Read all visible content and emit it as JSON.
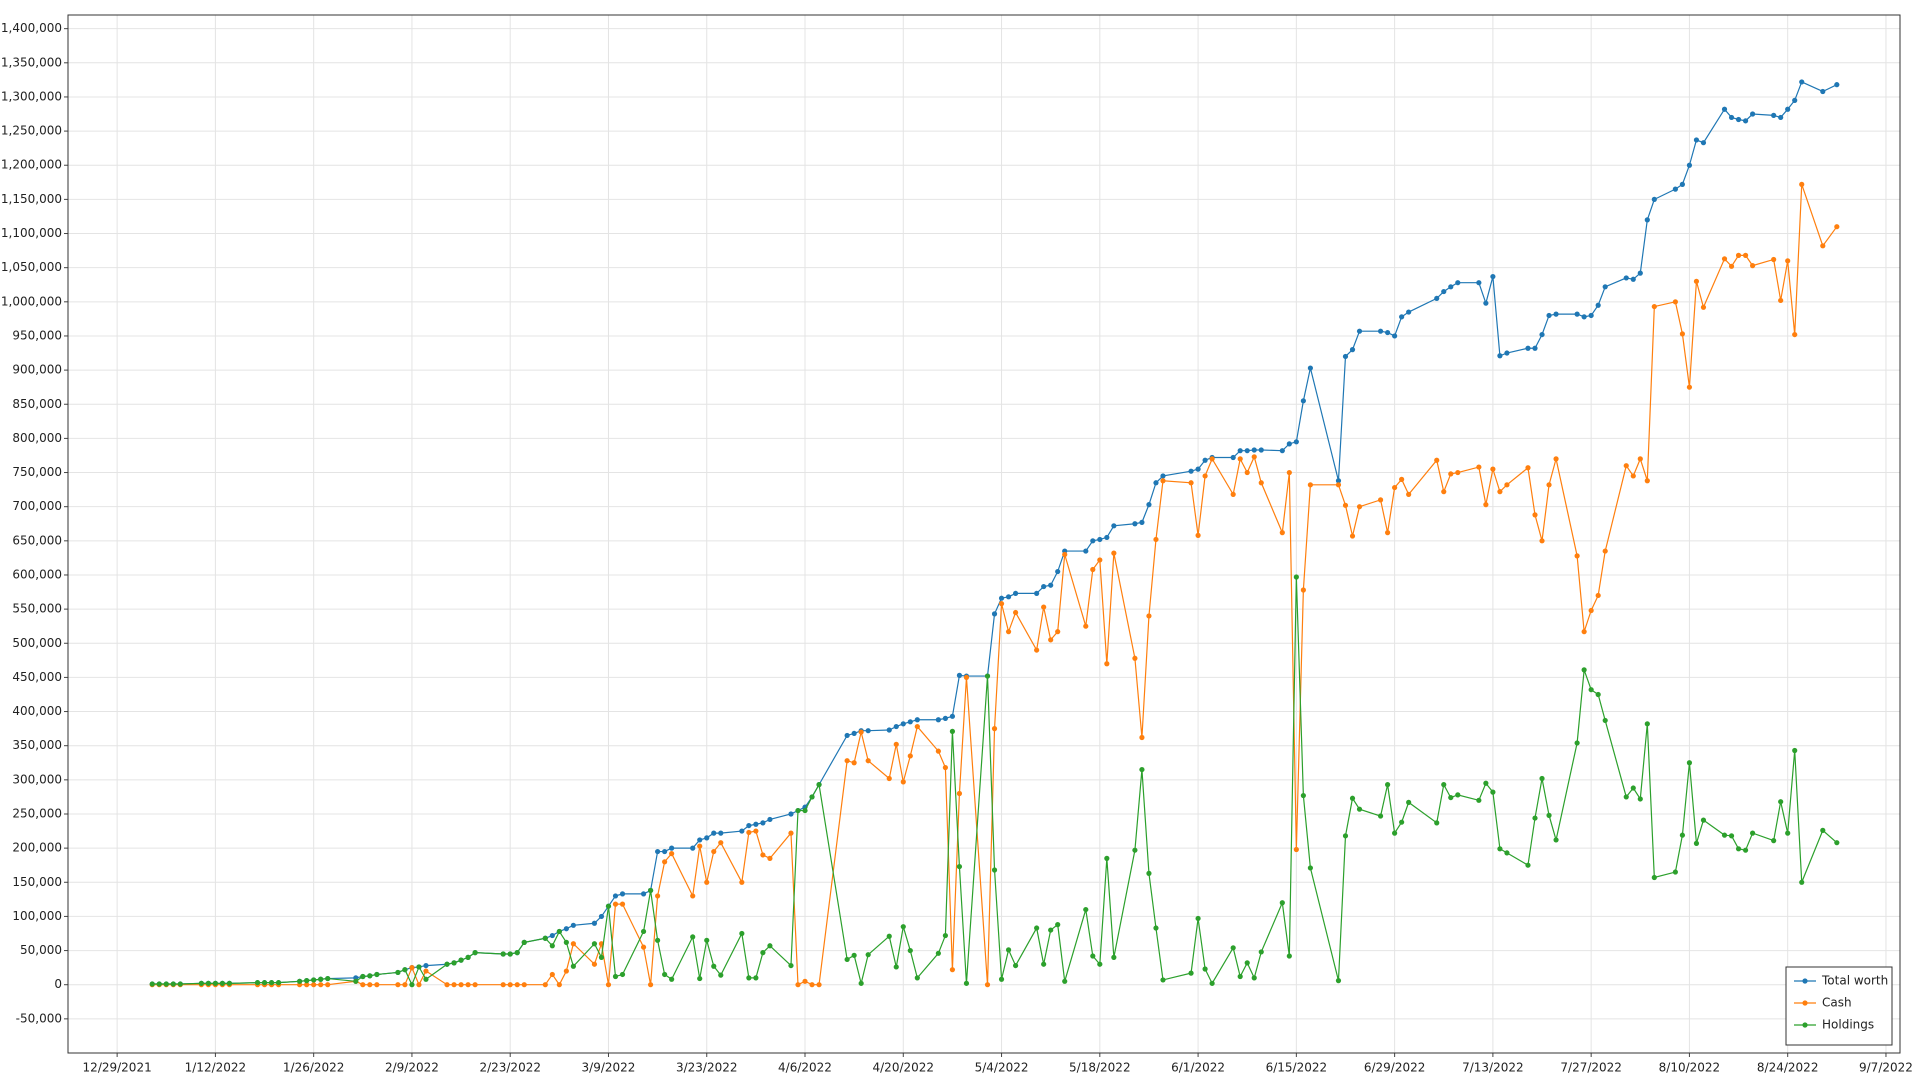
{
  "chart_data": {
    "type": "line",
    "x": [
      "1/3/2022",
      "1/4/2022",
      "1/5/2022",
      "1/6/2022",
      "1/7/2022",
      "1/10/2022",
      "1/11/2022",
      "1/12/2022",
      "1/13/2022",
      "1/14/2022",
      "1/18/2022",
      "1/19/2022",
      "1/20/2022",
      "1/21/2022",
      "1/24/2022",
      "1/25/2022",
      "1/26/2022",
      "1/27/2022",
      "1/28/2022",
      "2/1/2022",
      "2/2/2022",
      "2/3/2022",
      "2/4/2022",
      "2/7/2022",
      "2/8/2022",
      "2/9/2022",
      "2/10/2022",
      "2/11/2022",
      "2/14/2022",
      "2/15/2022",
      "2/16/2022",
      "2/17/2022",
      "2/18/2022",
      "2/22/2022",
      "2/23/2022",
      "2/24/2022",
      "2/25/2022",
      "2/28/2022",
      "3/1/2022",
      "3/2/2022",
      "3/3/2022",
      "3/4/2022",
      "3/7/2022",
      "3/8/2022",
      "3/9/2022",
      "3/10/2022",
      "3/11/2022",
      "3/14/2022",
      "3/15/2022",
      "3/16/2022",
      "3/17/2022",
      "3/18/2022",
      "3/21/2022",
      "3/22/2022",
      "3/23/2022",
      "3/24/2022",
      "3/25/2022",
      "3/28/2022",
      "3/29/2022",
      "3/30/2022",
      "3/31/2022",
      "4/1/2022",
      "4/4/2022",
      "4/5/2022",
      "4/6/2022",
      "4/7/2022",
      "4/8/2022",
      "4/12/2022",
      "4/13/2022",
      "4/14/2022",
      "4/15/2022",
      "4/18/2022",
      "4/19/2022",
      "4/20/2022",
      "4/21/2022",
      "4/22/2022",
      "4/25/2022",
      "4/26/2022",
      "4/27/2022",
      "4/28/2022",
      "4/29/2022",
      "5/2/2022",
      "5/3/2022",
      "5/4/2022",
      "5/5/2022",
      "5/6/2022",
      "5/9/2022",
      "5/10/2022",
      "5/11/2022",
      "5/12/2022",
      "5/13/2022",
      "5/16/2022",
      "5/17/2022",
      "5/18/2022",
      "5/19/2022",
      "5/20/2022",
      "5/23/2022",
      "5/24/2022",
      "5/25/2022",
      "5/26/2022",
      "5/27/2022",
      "5/31/2022",
      "6/1/2022",
      "6/2/2022",
      "6/3/2022",
      "6/6/2022",
      "6/7/2022",
      "6/8/2022",
      "6/9/2022",
      "6/10/2022",
      "6/13/2022",
      "6/14/2022",
      "6/15/2022",
      "6/16/2022",
      "6/17/2022",
      "6/21/2022",
      "6/22/2022",
      "6/23/2022",
      "6/24/2022",
      "6/27/2022",
      "6/28/2022",
      "6/29/2022",
      "6/30/2022",
      "7/1/2022",
      "7/5/2022",
      "7/6/2022",
      "7/7/2022",
      "7/8/2022",
      "7/11/2022",
      "7/12/2022",
      "7/13/2022",
      "7/14/2022",
      "7/15/2022",
      "7/18/2022",
      "7/19/2022",
      "7/20/2022",
      "7/21/2022",
      "7/22/2022",
      "7/25/2022",
      "7/26/2022",
      "7/27/2022",
      "7/28/2022",
      "7/29/2022",
      "8/1/2022",
      "8/2/2022",
      "8/3/2022",
      "8/4/2022",
      "8/5/2022",
      "8/8/2022",
      "8/9/2022",
      "8/10/2022",
      "8/11/2022",
      "8/12/2022",
      "8/15/2022",
      "8/16/2022",
      "8/17/2022",
      "8/18/2022",
      "8/19/2022",
      "8/22/2022",
      "8/23/2022",
      "8/24/2022",
      "8/25/2022",
      "8/26/2022",
      "8/29/2022",
      "8/31/2022"
    ],
    "series": [
      {
        "name": "Total worth",
        "color": "#1f77b4",
        "values": [
          1000,
          1000,
          1000,
          1000,
          1000,
          2000,
          2000,
          2000,
          2000,
          2000,
          3000,
          3000,
          3000,
          3000,
          5000,
          6000,
          7000,
          8000,
          9000,
          10000,
          12000,
          13000,
          15000,
          18000,
          22000,
          25000,
          26000,
          28000,
          30000,
          32000,
          36000,
          40000,
          47000,
          45000,
          45000,
          47000,
          62000,
          68000,
          72000,
          78000,
          82000,
          87000,
          90000,
          100000,
          115000,
          130000,
          133000,
          133000,
          138000,
          195000,
          195000,
          200000,
          200000,
          212000,
          215000,
          222000,
          222000,
          225000,
          233000,
          235000,
          237000,
          242000,
          250000,
          255000,
          260000,
          275000,
          293000,
          365000,
          368000,
          372000,
          372000,
          373000,
          378000,
          382000,
          385000,
          388000,
          388000,
          390000,
          393000,
          453000,
          452000,
          452000,
          543000,
          566000,
          568000,
          573000,
          573000,
          583000,
          585000,
          605000,
          635000,
          635000,
          650000,
          652000,
          655000,
          672000,
          675000,
          677000,
          703000,
          735000,
          745000,
          752000,
          755000,
          768000,
          772000,
          772000,
          782000,
          782000,
          783000,
          783000,
          782000,
          792000,
          795000,
          855000,
          903000,
          738000,
          920000,
          930000,
          957000,
          957000,
          955000,
          950000,
          978000,
          985000,
          1005000,
          1015000,
          1022000,
          1028000,
          1028000,
          998000,
          1037000,
          921000,
          925000,
          932000,
          932000,
          952000,
          980000,
          982000,
          982000,
          978000,
          980000,
          995000,
          1022000,
          1035000,
          1033000,
          1042000,
          1120000,
          1150000,
          1165000,
          1172000,
          1200000,
          1237000,
          1233000,
          1282000,
          1270000,
          1267000,
          1265000,
          1275000,
          1273000,
          1270000,
          1282000,
          1295000,
          1322000,
          1308000,
          1318000
        ]
      },
      {
        "name": "Cash",
        "color": "#ff7f0e",
        "values": [
          0,
          0,
          0,
          0,
          0,
          0,
          0,
          0,
          0,
          0,
          0,
          0,
          0,
          0,
          0,
          0,
          0,
          0,
          0,
          5000,
          0,
          0,
          0,
          0,
          0,
          25000,
          0,
          20000,
          0,
          0,
          0,
          0,
          0,
          0,
          0,
          0,
          0,
          0,
          15000,
          0,
          20000,
          60000,
          30000,
          60000,
          0,
          118000,
          118000,
          55000,
          0,
          130000,
          180000,
          192000,
          130000,
          203000,
          150000,
          195000,
          208000,
          150000,
          223000,
          225000,
          190000,
          185000,
          222000,
          0,
          5000,
          0,
          0,
          328000,
          325000,
          370000,
          328000,
          302000,
          352000,
          297000,
          335000,
          378000,
          342000,
          318000,
          22000,
          280000,
          450000,
          0,
          375000,
          558000,
          517000,
          545000,
          490000,
          553000,
          505000,
          517000,
          630000,
          525000,
          608000,
          622000,
          470000,
          632000,
          478000,
          362000,
          540000,
          652000,
          738000,
          735000,
          658000,
          745000,
          770000,
          718000,
          770000,
          750000,
          773000,
          735000,
          662000,
          750000,
          198000,
          578000,
          732000,
          732000,
          702000,
          657000,
          700000,
          710000,
          662000,
          728000,
          740000,
          718000,
          768000,
          722000,
          748000,
          750000,
          758000,
          703000,
          755000,
          722000,
          732000,
          757000,
          688000,
          650000,
          732000,
          770000,
          628000,
          517000,
          548000,
          570000,
          635000,
          760000,
          745000,
          770000,
          738000,
          993000,
          1000000,
          953000,
          875000,
          1030000,
          992000,
          1063000,
          1052000,
          1068000,
          1068000,
          1053000,
          1062000,
          1002000,
          1060000,
          952000,
          1172000,
          1082000,
          1110000
        ]
      },
      {
        "name": "Holdings",
        "color": "#2ca02c",
        "values": [
          1000,
          1000,
          1000,
          1000,
          1000,
          2000,
          2000,
          2000,
          2000,
          2000,
          3000,
          3000,
          3000,
          3000,
          5000,
          6000,
          7000,
          8000,
          9000,
          5000,
          12000,
          13000,
          15000,
          18000,
          22000,
          0,
          26000,
          8000,
          30000,
          32000,
          36000,
          40000,
          47000,
          45000,
          45000,
          47000,
          62000,
          68000,
          57000,
          78000,
          62000,
          27000,
          60000,
          40000,
          115000,
          12000,
          15000,
          78000,
          138000,
          65000,
          15000,
          8000,
          70000,
          9000,
          65000,
          27000,
          14000,
          75000,
          10000,
          10000,
          47000,
          57000,
          28000,
          255000,
          255000,
          275000,
          293000,
          37000,
          43000,
          2000,
          44000,
          71000,
          26000,
          85000,
          50000,
          10000,
          46000,
          72000,
          371000,
          173000,
          2000,
          452000,
          168000,
          8000,
          51000,
          28000,
          83000,
          30000,
          80000,
          88000,
          5000,
          110000,
          42000,
          30000,
          185000,
          40000,
          197000,
          315000,
          163000,
          83000,
          7000,
          17000,
          97000,
          23000,
          2000,
          54000,
          12000,
          32000,
          10000,
          48000,
          120000,
          42000,
          597000,
          277000,
          171000,
          6000,
          218000,
          273000,
          257000,
          247000,
          293000,
          222000,
          238000,
          267000,
          237000,
          293000,
          274000,
          278000,
          270000,
          295000,
          282000,
          199000,
          193000,
          175000,
          244000,
          302000,
          248000,
          212000,
          354000,
          461000,
          432000,
          425000,
          387000,
          275000,
          288000,
          272000,
          382000,
          157000,
          165000,
          219000,
          325000,
          207000,
          241000,
          219000,
          218000,
          199000,
          197000,
          222000,
          211000,
          268000,
          222000,
          343000,
          150000,
          226000,
          208000
        ]
      }
    ],
    "xlim": [
      "12/22/2021",
      "9/9/2022"
    ],
    "xticks": [
      "12/29/2021",
      "1/12/2022",
      "1/26/2022",
      "2/9/2022",
      "2/23/2022",
      "3/9/2022",
      "3/23/2022",
      "4/6/2022",
      "4/20/2022",
      "5/4/2022",
      "5/18/2022",
      "6/1/2022",
      "6/15/2022",
      "6/29/2022",
      "7/13/2022",
      "7/27/2022",
      "8/10/2022",
      "8/24/2022",
      "9/7/2022"
    ],
    "ylim": [
      -100000,
      1420000
    ],
    "yticks": [
      {
        "value": -50000,
        "label": "-50,000"
      },
      0,
      {
        "value": 50000,
        "label": "50,000"
      },
      {
        "value": 100000,
        "label": "100,000"
      },
      {
        "value": 150000,
        "label": "150,000"
      },
      {
        "value": 200000,
        "label": "200,000"
      },
      {
        "value": 250000,
        "label": "250,000"
      },
      {
        "value": 300000,
        "label": "300,000"
      },
      {
        "value": 350000,
        "label": "350,000"
      },
      {
        "value": 400000,
        "label": "400,000"
      },
      {
        "value": 450000,
        "label": "450,000"
      },
      {
        "value": 500000,
        "label": "500,000"
      },
      {
        "value": 550000,
        "label": "550,000"
      },
      {
        "value": 600000,
        "label": "600,000"
      },
      {
        "value": 650000,
        "label": "650,000"
      },
      {
        "value": 700000,
        "label": "700,000"
      },
      {
        "value": 750000,
        "label": "750,000"
      },
      {
        "value": 800000,
        "label": "800,000"
      },
      {
        "value": 850000,
        "label": "850,000"
      },
      {
        "value": 900000,
        "label": "900,000"
      },
      {
        "value": 950000,
        "label": "950,000"
      },
      {
        "value": 1000000,
        "label": "1,000,000"
      },
      {
        "value": 1050000,
        "label": "1,050,000"
      },
      {
        "value": 1100000,
        "label": "1,100,000"
      },
      {
        "value": 1150000,
        "label": "1,150,000"
      },
      {
        "value": 1200000,
        "label": "1,200,000"
      },
      {
        "value": 1250000,
        "label": "1,250,000"
      },
      {
        "value": 1300000,
        "label": "1,300,000"
      },
      {
        "value": 1350000,
        "label": "1,350,000"
      },
      {
        "value": 1400000,
        "label": "1,400,000"
      }
    ],
    "grid": true,
    "legend": "lower right"
  }
}
